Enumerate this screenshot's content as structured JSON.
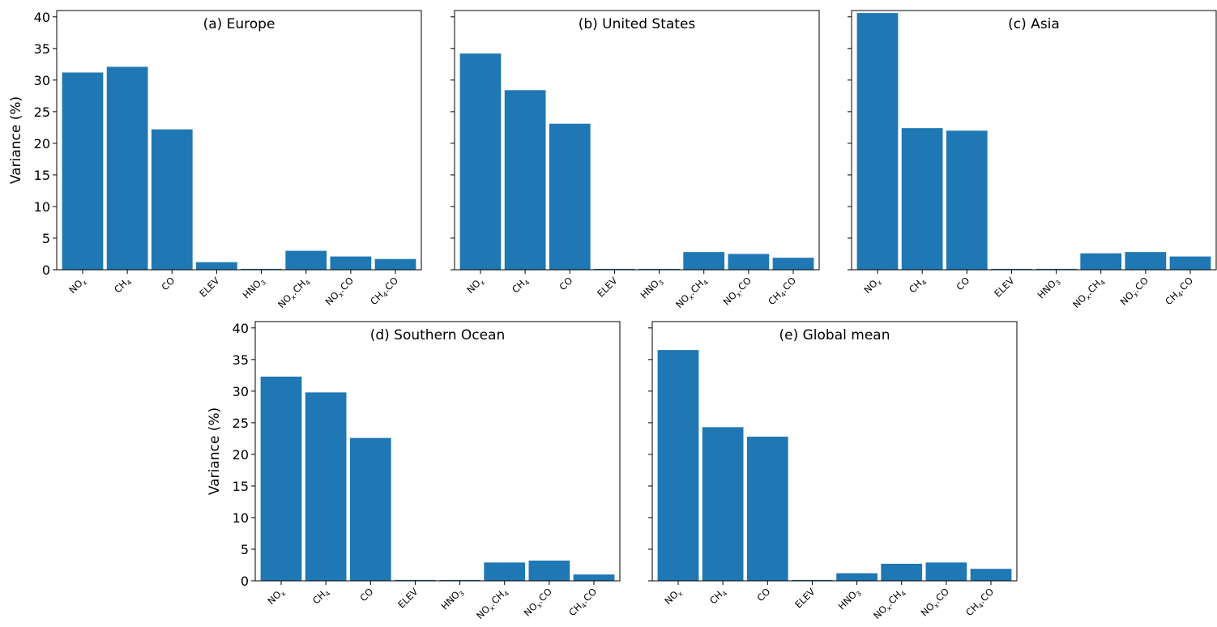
{
  "chart_data": [
    {
      "type": "bar",
      "title": "(a) Europe",
      "ylabel": "Variance (%)",
      "xlabel": "",
      "ylim": [
        0,
        41
      ],
      "yticks": [
        0,
        5,
        10,
        15,
        20,
        25,
        30,
        35,
        40
      ],
      "categories": [
        "NO_x",
        "CH_4",
        "CO",
        "ELEV",
        "HNO_3",
        "NO_x.CH_4",
        "NO_x.CO",
        "CH_4.CO"
      ],
      "values": [
        31.2,
        32.1,
        22.2,
        1.2,
        0.0,
        3.0,
        2.1,
        1.7
      ],
      "color": "#1f77b4",
      "grid": false,
      "show_ytick_labels": true
    },
    {
      "type": "bar",
      "title": "(b) United States",
      "ylabel": "",
      "xlabel": "",
      "ylim": [
        0,
        41
      ],
      "yticks": [
        0,
        5,
        10,
        15,
        20,
        25,
        30,
        35,
        40
      ],
      "categories": [
        "NO_x",
        "CH_4",
        "CO",
        "ELEV",
        "HNO_3",
        "NO_x.CH_4",
        "NO_x.CO",
        "CH_4.CO"
      ],
      "values": [
        34.2,
        28.4,
        23.1,
        0.0,
        0.0,
        2.8,
        2.5,
        1.9
      ],
      "color": "#1f77b4",
      "grid": false,
      "show_ytick_labels": false
    },
    {
      "type": "bar",
      "title": "(c) Asia",
      "ylabel": "",
      "xlabel": "",
      "ylim": [
        0,
        41
      ],
      "yticks": [
        0,
        5,
        10,
        15,
        20,
        25,
        30,
        35,
        40
      ],
      "categories": [
        "NO_x",
        "CH_4",
        "CO",
        "ELEV",
        "HNO_3",
        "NO_x.CH_4",
        "NO_x.CO",
        "CH_4.CO"
      ],
      "values": [
        40.6,
        22.4,
        22.0,
        0.0,
        0.0,
        2.6,
        2.8,
        2.1
      ],
      "color": "#1f77b4",
      "grid": false,
      "show_ytick_labels": false
    },
    {
      "type": "bar",
      "title": "(d) Southern Ocean",
      "ylabel": "Variance (%)",
      "xlabel": "",
      "ylim": [
        0,
        41
      ],
      "yticks": [
        0,
        5,
        10,
        15,
        20,
        25,
        30,
        35,
        40
      ],
      "categories": [
        "NO_x",
        "CH_4",
        "CO",
        "ELEV",
        "HNO_3",
        "NO_x.CH_4",
        "NO_x.CO",
        "CH_4.CO"
      ],
      "values": [
        32.3,
        29.8,
        22.6,
        0.0,
        0.0,
        2.9,
        3.2,
        1.0
      ],
      "color": "#1f77b4",
      "grid": false,
      "show_ytick_labels": true
    },
    {
      "type": "bar",
      "title": "(e) Global mean",
      "ylabel": "",
      "xlabel": "",
      "ylim": [
        0,
        41
      ],
      "yticks": [
        0,
        5,
        10,
        15,
        20,
        25,
        30,
        35,
        40
      ],
      "categories": [
        "NO_x",
        "CH_4",
        "CO",
        "ELEV",
        "HNO_3",
        "NO_x.CH_4",
        "NO_x.CO",
        "CH_4.CO"
      ],
      "values": [
        36.5,
        24.3,
        22.8,
        0.0,
        1.2,
        2.7,
        2.9,
        1.9
      ],
      "color": "#1f77b4",
      "grid": false,
      "show_ytick_labels": false
    }
  ]
}
